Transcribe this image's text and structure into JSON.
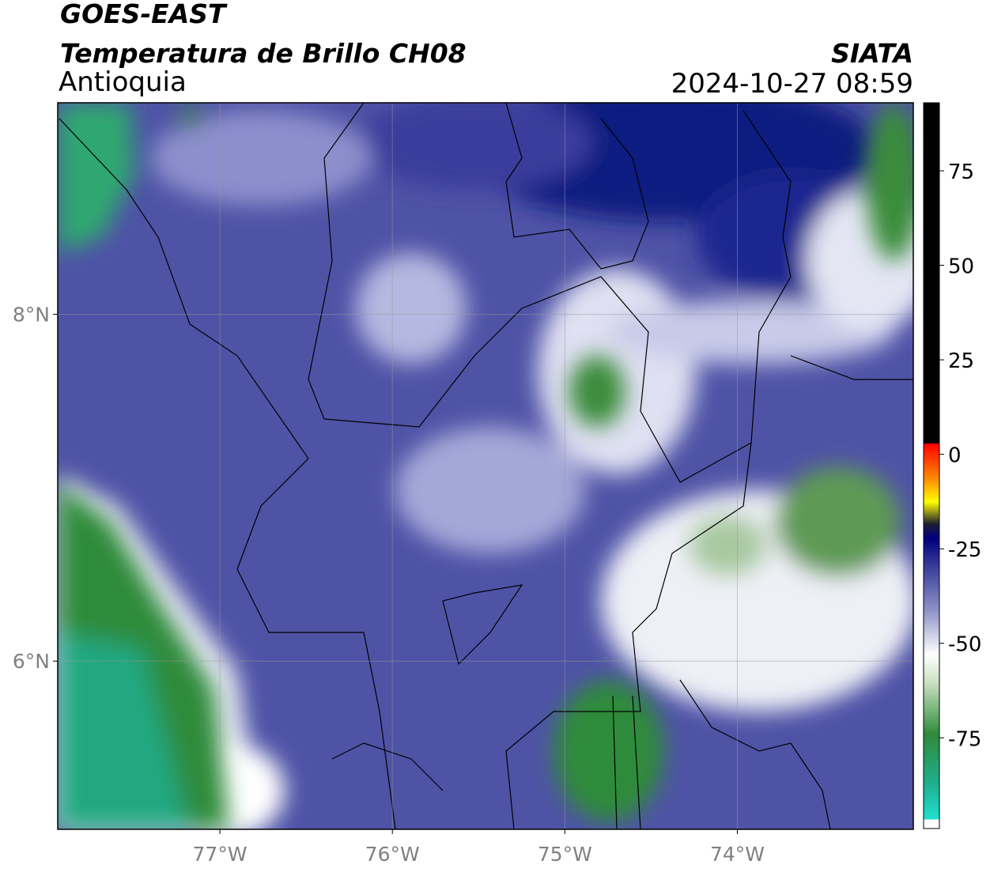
{
  "header": {
    "satellite": "GOES-EAST",
    "product": "Temperatura de Brillo CH08",
    "region": "Antioquia",
    "source": "SIATA",
    "datetime": "2024-10-27 08:59"
  },
  "map": {
    "xlim": [
      -77.94,
      -72.98
    ],
    "ylim": [
      5.03,
      9.22
    ],
    "xticks": [
      {
        "value": -77,
        "label": "77°W"
      },
      {
        "value": -76,
        "label": "76°W"
      },
      {
        "value": -75,
        "label": "75°W"
      },
      {
        "value": -74,
        "label": "74°W"
      }
    ],
    "yticks": [
      {
        "value": 6,
        "label": "6°N"
      },
      {
        "value": 8,
        "label": "8°N"
      }
    ],
    "grid": true
  },
  "colorbar": {
    "lim": [
      -99,
      93
    ],
    "ticks": [
      75,
      50,
      25,
      0,
      -25,
      -50,
      -75
    ]
  }
}
